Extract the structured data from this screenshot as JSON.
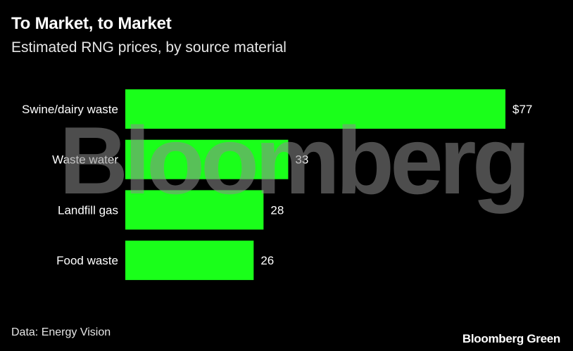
{
  "title": "To Market, to Market",
  "subtitle": "Estimated RNG prices, by source material",
  "source": "Data: Energy Vision",
  "brand": "Bloomberg Green",
  "watermark": "Bloomberg",
  "colors": {
    "bar": "#1aff1a",
    "background": "#000000",
    "text": "#ffffff"
  },
  "chart_data": {
    "type": "bar",
    "orientation": "horizontal",
    "categories": [
      "Swine/dairy waste",
      "Waste water",
      "Landfill gas",
      "Food waste"
    ],
    "values": [
      77,
      33,
      28,
      26
    ],
    "value_labels": [
      "$77",
      "33",
      "28",
      "26"
    ],
    "title": "To Market, to Market",
    "subtitle": "Estimated RNG prices, by source material",
    "xlabel": "",
    "ylabel": "",
    "xlim": [
      0,
      77
    ],
    "grid": false,
    "legend": "none"
  }
}
